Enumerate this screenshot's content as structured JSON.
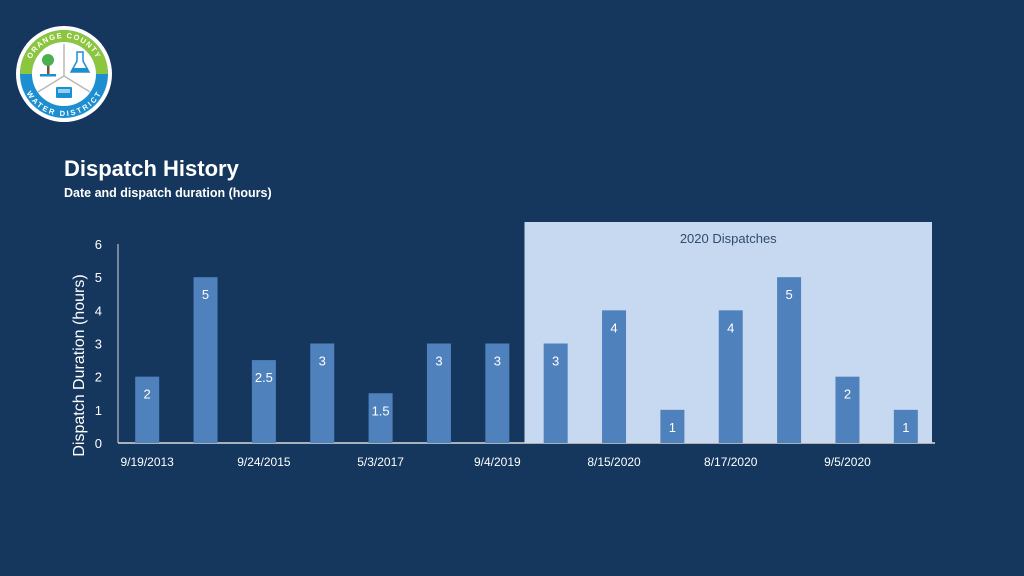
{
  "header": {
    "logo_text_top": "ORANGE COUNTY",
    "logo_text_bottom": "WATER DISTRICT",
    "title": "Dispatch History",
    "subtitle": "Date and dispatch duration (hours)"
  },
  "colors": {
    "background": "#15375e",
    "bar": "#4f81bd",
    "highlight_panel": "#c7d9f1",
    "text_light": "#ffffff",
    "text_dark": "#ffffff"
  },
  "chart_data": {
    "type": "bar",
    "title": "Dispatch History",
    "subtitle": "Date and dispatch duration (hours)",
    "xlabel": "",
    "ylabel": "Dispatch Duration (hours)",
    "ylim": [
      0,
      6
    ],
    "yticks": [
      0,
      1,
      2,
      3,
      4,
      5,
      6
    ],
    "values": [
      2,
      5,
      2.5,
      3,
      1.5,
      3,
      3,
      3,
      4,
      1,
      4,
      5,
      2,
      1
    ],
    "data_labels": [
      "2",
      "5",
      "2.5",
      "3",
      "1.5",
      "3",
      "3",
      "3",
      "4",
      "1",
      "4",
      "5",
      "2",
      "1"
    ],
    "x_tick_labels": [
      "9/19/2013",
      "9/24/2015",
      "5/3/2017",
      "9/4/2019",
      "8/15/2020",
      "8/17/2020",
      "9/5/2020"
    ],
    "x_tick_label_every": 2,
    "highlight": {
      "label": "2020 Dispatches",
      "start_index": 7,
      "end_index": 13
    },
    "grid": false,
    "legend": "none"
  }
}
